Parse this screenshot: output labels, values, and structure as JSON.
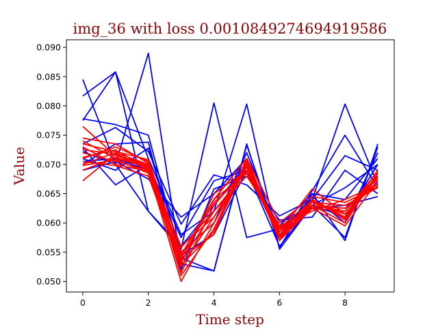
{
  "chart_data": {
    "type": "line",
    "title": "img_36 with loss 0.0010849274694919586",
    "xlabel": "Time step",
    "ylabel": "Value",
    "xlim": [
      -0.5,
      9.5
    ],
    "ylim": [
      0.0482,
      0.0913
    ],
    "xticks": [
      0,
      2,
      4,
      6,
      8
    ],
    "xtick_labels": [
      "0",
      "2",
      "4",
      "6",
      "8"
    ],
    "yticks": [
      0.05,
      0.055,
      0.06,
      0.065,
      0.07,
      0.075,
      0.08,
      0.085,
      0.09
    ],
    "ytick_labels": [
      "0.050",
      "0.055",
      "0.060",
      "0.065",
      "0.070",
      "0.075",
      "0.080",
      "0.085",
      "0.090"
    ],
    "grid": false,
    "x": [
      0,
      1,
      2,
      3,
      4,
      5,
      6,
      7,
      8,
      9
    ],
    "colors": {
      "blue": "#0000ff",
      "red": "#ff0000",
      "title": "#8b0000"
    },
    "series": [
      {
        "color": "blue",
        "values": [
          0.0845,
          0.07,
          0.089,
          0.053,
          0.0518,
          0.0735,
          0.0558,
          0.065,
          0.057,
          0.0735
        ]
      },
      {
        "color": "blue",
        "values": [
          0.0817,
          0.0858,
          0.062,
          0.0555,
          0.0805,
          0.0575,
          0.059,
          0.064,
          0.0803,
          0.0665
        ]
      },
      {
        "color": "blue",
        "values": [
          0.0775,
          0.0858,
          0.071,
          0.058,
          0.062,
          0.0803,
          0.0555,
          0.063,
          0.0575,
          0.073
        ]
      },
      {
        "color": "blue",
        "values": [
          0.0778,
          0.0768,
          0.075,
          0.054,
          0.0518,
          0.0733,
          0.057,
          0.0655,
          0.075,
          0.066
        ]
      },
      {
        "color": "blue",
        "values": [
          0.0735,
          0.0763,
          0.0722,
          0.0598,
          0.0682,
          0.0665,
          0.0612,
          0.064,
          0.0715,
          0.069
        ]
      },
      {
        "color": "blue",
        "values": [
          0.07,
          0.0735,
          0.0738,
          0.052,
          0.0658,
          0.068,
          0.0605,
          0.061,
          0.069,
          0.065
        ]
      },
      {
        "color": "blue",
        "values": [
          0.071,
          0.069,
          0.0728,
          0.055,
          0.06,
          0.072,
          0.058,
          0.0645,
          0.06,
          0.072
        ]
      },
      {
        "color": "blue",
        "values": [
          0.069,
          0.0705,
          0.0675,
          0.061,
          0.065,
          0.071,
          0.06,
          0.063,
          0.066,
          0.07
        ]
      },
      {
        "color": "blue",
        "values": [
          0.0728,
          0.0665,
          0.07,
          0.0575,
          0.0672,
          0.069,
          0.0595,
          0.065,
          0.064,
          0.071
        ]
      },
      {
        "color": "blue",
        "values": [
          0.0722,
          0.07,
          0.062,
          0.056,
          0.063,
          0.07,
          0.059,
          0.0625,
          0.063,
          0.0645
        ]
      },
      {
        "color": "blue",
        "values": [
          0.0705,
          0.071,
          0.069,
          0.0545,
          0.058,
          0.069,
          0.056,
          0.063,
          0.061,
          0.07
        ]
      },
      {
        "color": "red",
        "values": [
          0.07,
          0.072,
          0.07,
          0.0535,
          0.062,
          0.069,
          0.0575,
          0.0625,
          0.062,
          0.068
        ]
      },
      {
        "color": "red",
        "values": [
          0.072,
          0.0705,
          0.069,
          0.05,
          0.06,
          0.07,
          0.058,
          0.063,
          0.0625,
          0.0675
        ]
      },
      {
        "color": "red",
        "values": [
          0.0765,
          0.0715,
          0.07,
          0.051,
          0.059,
          0.0705,
          0.057,
          0.064,
          0.061,
          0.069
        ]
      },
      {
        "color": "red",
        "values": [
          0.0672,
          0.0718,
          0.069,
          0.0545,
          0.064,
          0.0685,
          0.059,
          0.063,
          0.06,
          0.0685
        ]
      },
      {
        "color": "red",
        "values": [
          0.074,
          0.071,
          0.0695,
          0.0525,
          0.061,
          0.07,
          0.0585,
          0.0658,
          0.0615,
          0.067
        ]
      },
      {
        "color": "red",
        "values": [
          0.071,
          0.073,
          0.0705,
          0.054,
          0.058,
          0.071,
          0.0575,
          0.0635,
          0.063,
          0.066
        ]
      },
      {
        "color": "red",
        "values": [
          0.069,
          0.0712,
          0.0698,
          0.0558,
          0.062,
          0.068,
          0.0595,
          0.062,
          0.064,
          0.0665
        ]
      },
      {
        "color": "red",
        "values": [
          0.073,
          0.07,
          0.0688,
          0.053,
          0.065,
          0.069,
          0.058,
          0.064,
          0.0605,
          0.068
        ]
      },
      {
        "color": "red",
        "values": [
          0.0712,
          0.0725,
          0.0692,
          0.055,
          0.06,
          0.07,
          0.057,
          0.0625,
          0.0595,
          0.0672
        ]
      },
      {
        "color": "red",
        "values": [
          0.0745,
          0.0735,
          0.0702,
          0.0515,
          0.063,
          0.0695,
          0.059,
          0.063,
          0.062,
          0.0688
        ]
      },
      {
        "color": "red",
        "values": [
          0.0698,
          0.0708,
          0.0685,
          0.0545,
          0.064,
          0.071,
          0.06,
          0.0645,
          0.0635,
          0.0662
        ]
      },
      {
        "color": "red",
        "values": [
          0.0725,
          0.0718,
          0.0695,
          0.056,
          0.061,
          0.069,
          0.0585,
          0.0635,
          0.0615,
          0.0678
        ]
      },
      {
        "color": "red",
        "values": [
          0.0705,
          0.0698,
          0.068,
          0.0528,
          0.0585,
          0.07,
          0.0578,
          0.0628,
          0.0625,
          0.067
        ]
      },
      {
        "color": "red",
        "values": [
          0.0735,
          0.0722,
          0.0708,
          0.054,
          0.0635,
          0.0685,
          0.0592,
          0.0638,
          0.0608,
          0.0684
        ]
      }
    ]
  }
}
